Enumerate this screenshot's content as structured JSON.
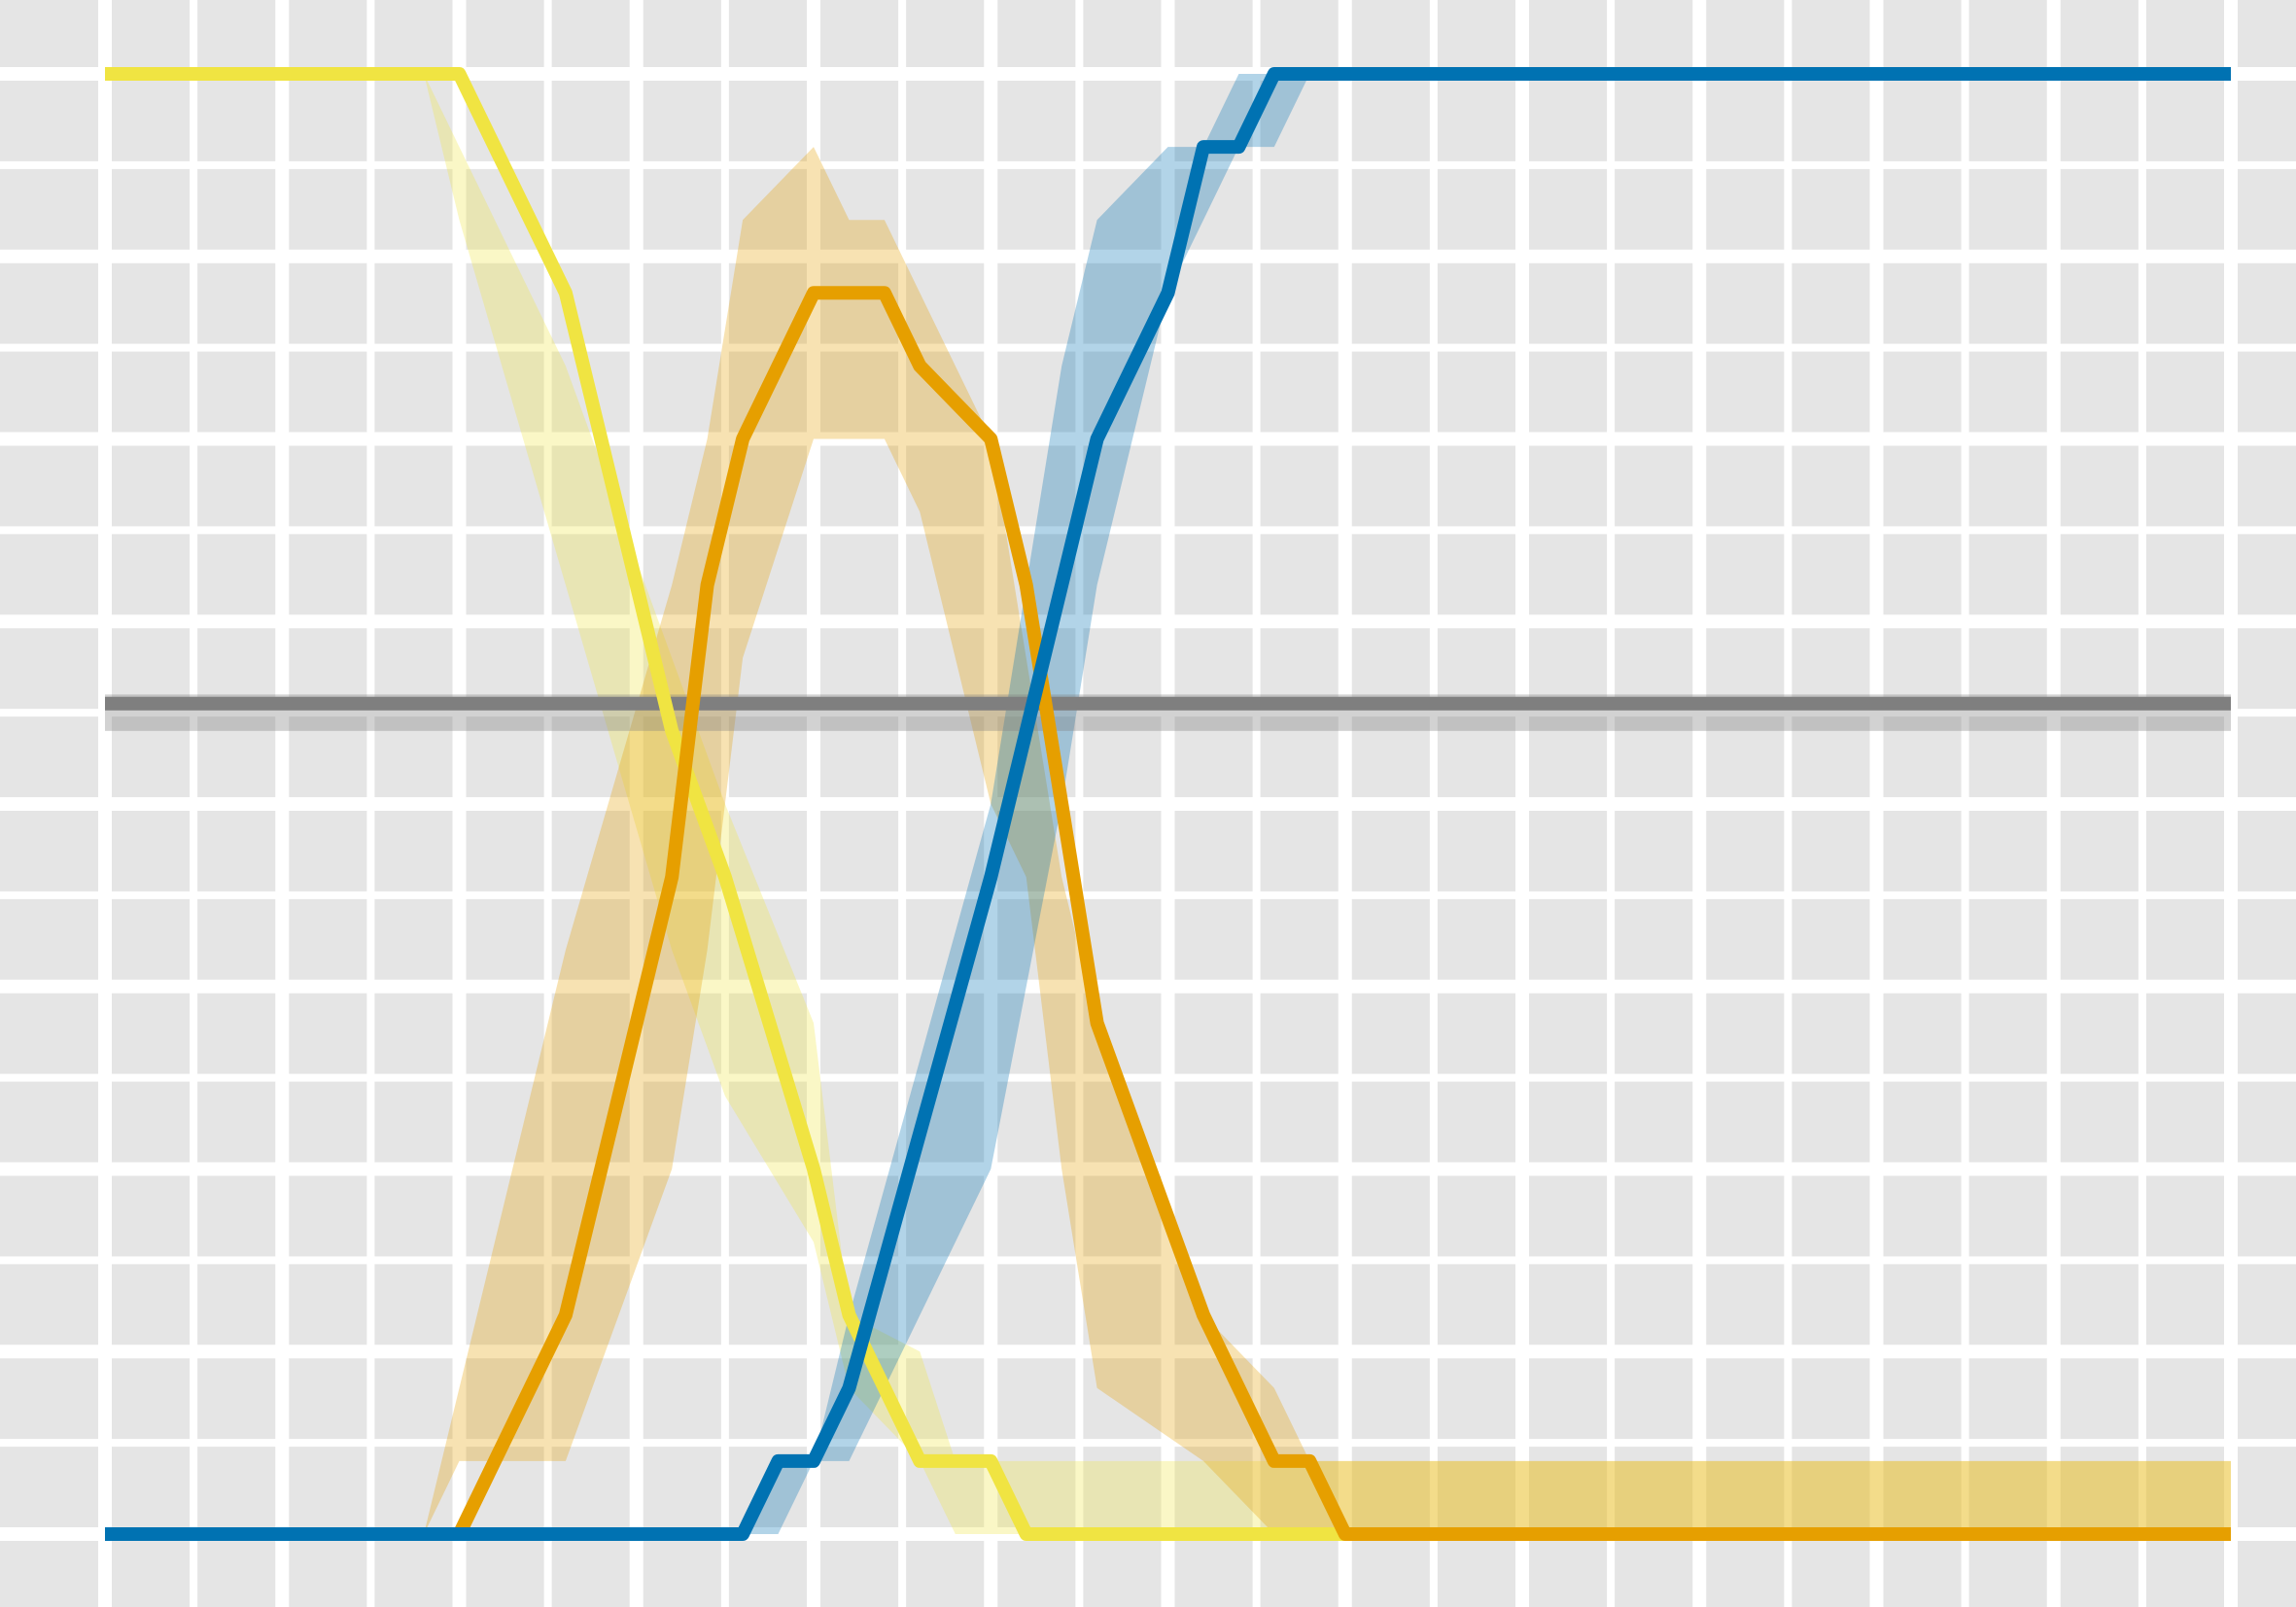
{
  "chart_data": {
    "type": "line",
    "title": "",
    "xlabel": "",
    "ylabel": "",
    "grid": true,
    "legend": "none",
    "xlim": [
      -0.25,
      12.75
    ],
    "ylim": [
      -0.4,
      8.4
    ],
    "x_ticks": [
      0,
      1,
      2,
      3,
      4,
      5,
      6,
      7,
      8,
      9,
      10,
      11,
      12
    ],
    "y_ticks": [
      0,
      1,
      2,
      3,
      4,
      5,
      6,
      7,
      8
    ],
    "colors": {
      "background": "#e5e5e5",
      "grid": "#ffffff",
      "yellow": "#f0e442",
      "orange": "#e69f00",
      "blue": "#0072b2",
      "gray": "#7f7f7f"
    },
    "series": [
      {
        "key": "yellow",
        "color": "#f0e442",
        "x": [
          0,
          1.8,
          2.0,
          2.6,
          3.2,
          3.5,
          4.0,
          4.2,
          4.6,
          4.8,
          5.0,
          5.2,
          6.0,
          12.0
        ],
        "y": [
          8,
          8,
          8,
          6.8,
          4.4,
          3.6,
          2.0,
          1.2,
          0.4,
          0.4,
          0.4,
          0,
          0,
          0
        ],
        "band_upper": [
          8,
          8,
          7.6,
          6.4,
          4.8,
          4.0,
          2.8,
          1.2,
          1.0,
          0.4,
          0.4,
          0.4,
          0.4,
          0.4
        ],
        "band_lower": [
          8,
          8,
          7.2,
          5.2,
          3.2,
          2.4,
          1.6,
          0.8,
          0.4,
          0,
          0,
          0,
          0,
          0
        ]
      },
      {
        "key": "orange",
        "color": "#e69f00",
        "x": [
          0,
          1.8,
          2.0,
          2.6,
          3.2,
          3.4,
          3.6,
          4.0,
          4.2,
          4.4,
          4.6,
          5.0,
          5.2,
          5.4,
          5.6,
          6.2,
          6.6,
          6.8,
          7.0,
          12.0
        ],
        "y": [
          0,
          0,
          0,
          1.2,
          3.6,
          5.2,
          6.0,
          6.8,
          6.8,
          6.8,
          6.4,
          6.0,
          5.2,
          4.0,
          2.8,
          1.2,
          0.4,
          0.4,
          0,
          0
        ],
        "band_upper": [
          0,
          0,
          0.8,
          3.2,
          5.2,
          6.0,
          7.2,
          7.6,
          7.2,
          7.2,
          6.8,
          6.0,
          4.8,
          3.6,
          2.8,
          1.2,
          0.8,
          0.4,
          0.4,
          0.4
        ],
        "band_lower": [
          0,
          0,
          0.4,
          0.4,
          2.0,
          3.2,
          4.8,
          6.0,
          6.0,
          6.0,
          5.6,
          4.0,
          3.6,
          2.0,
          0.8,
          0.4,
          0,
          0,
          0,
          0
        ]
      },
      {
        "key": "blue",
        "color": "#0072b2",
        "x": [
          0,
          3.6,
          3.8,
          4.0,
          4.2,
          5.0,
          5.4,
          5.6,
          6.0,
          6.2,
          6.4,
          6.6,
          6.8,
          12.0
        ],
        "y": [
          0,
          0,
          0.4,
          0.4,
          0.8,
          3.6,
          5.2,
          6.0,
          6.8,
          7.6,
          7.6,
          8.0,
          8.0,
          8.0
        ],
        "band_upper": [
          0,
          0,
          0.4,
          0.4,
          1.2,
          4.0,
          6.4,
          7.2,
          7.6,
          7.6,
          8.0,
          8.0,
          8.0,
          8.0
        ],
        "band_lower": [
          0,
          0,
          0,
          0.4,
          0.4,
          2.0,
          4.0,
          5.2,
          6.8,
          7.2,
          7.6,
          7.6,
          8.0,
          8.0
        ]
      },
      {
        "key": "gray",
        "color": "#7f7f7f",
        "x": [
          0,
          12.0
        ],
        "y": [
          4.55,
          4.55
        ],
        "band_upper": [
          4.6,
          4.6
        ],
        "band_lower": [
          4.4,
          4.4
        ]
      }
    ]
  }
}
